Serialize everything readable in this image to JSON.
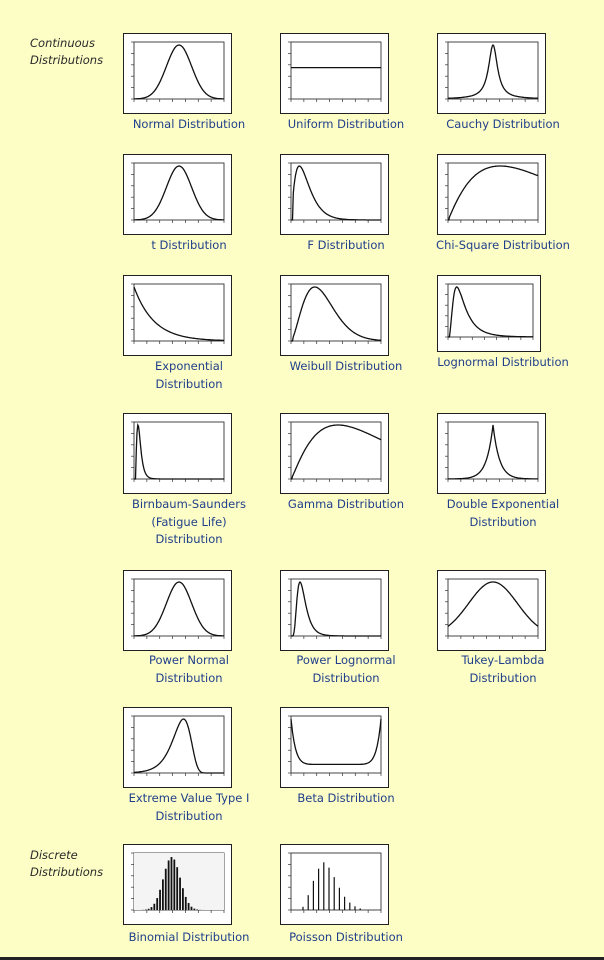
{
  "sections": {
    "continuous": "Continuous\nDistributions",
    "discrete": "Discrete\nDistributions"
  },
  "plots": [
    {
      "id": "normal",
      "caption": "Normal  Distribution",
      "curve": "normal"
    },
    {
      "id": "uniform",
      "caption": "Uniform  Distribution",
      "curve": "uniform"
    },
    {
      "id": "cauchy",
      "caption": "Cauchy  Distribution",
      "curve": "cauchy"
    },
    {
      "id": "t",
      "caption": "t  Distribution",
      "curve": "normal"
    },
    {
      "id": "f",
      "caption": "F  Distribution",
      "curve": "f"
    },
    {
      "id": "chi-square",
      "caption": "Chi-Square  Distribution",
      "curve": "chisq"
    },
    {
      "id": "exponential",
      "caption": "Exponential\nDistribution",
      "curve": "exp"
    },
    {
      "id": "weibull",
      "caption": "Weibull  Distribution",
      "curve": "weibull"
    },
    {
      "id": "lognormal",
      "caption": "Lognormal  Distribution",
      "curve": "lognormal"
    },
    {
      "id": "birnbaum-saunders",
      "caption": "Birnbaum-Saunders\n(Fatigue  Life)\nDistribution",
      "curve": "birnbaum"
    },
    {
      "id": "gamma",
      "caption": "Gamma  Distribution",
      "curve": "gamma"
    },
    {
      "id": "double-exponential",
      "caption": "Double  Exponential\nDistribution",
      "curve": "laplace"
    },
    {
      "id": "power-normal",
      "caption": "Power Normal\nDistribution",
      "curve": "normal"
    },
    {
      "id": "power-lognormal",
      "caption": "Power  Lognormal\nDistribution",
      "curve": "powerlog"
    },
    {
      "id": "tukey-lambda",
      "caption": "Tukey-Lambda\nDistribution",
      "curve": "tukey"
    },
    {
      "id": "extreme-value-type-1",
      "caption": "Extreme  Value  Type  I\nDistribution",
      "curve": "extreme"
    },
    {
      "id": "beta",
      "caption": "Beta  Distribution",
      "curve": "beta"
    },
    {
      "id": "binomial",
      "caption": "Binomial  Distribution",
      "curve": "binomial"
    },
    {
      "id": "poisson",
      "caption": "Poisson  Distribution",
      "curve": "poisson"
    }
  ]
}
